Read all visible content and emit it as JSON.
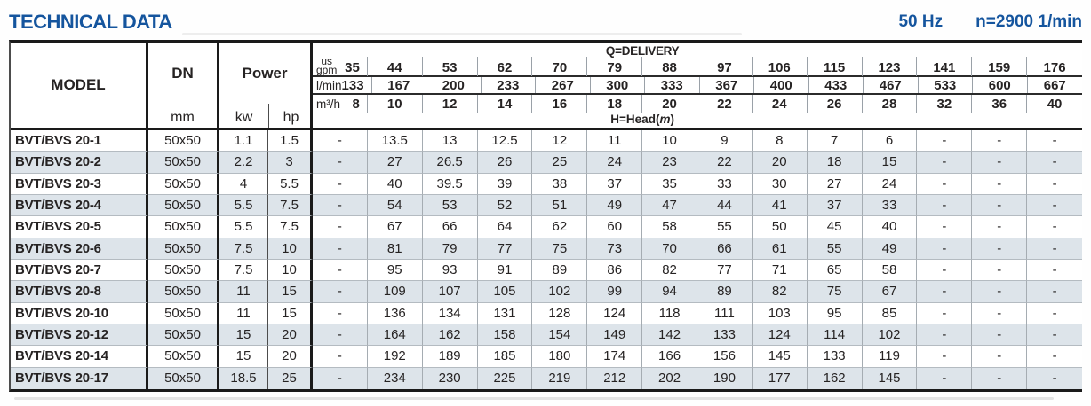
{
  "page": {
    "title": "TECHNICAL DATA",
    "frequency": "50 Hz",
    "speed": "n=2900 1/min"
  },
  "table": {
    "headers": {
      "model": "MODEL",
      "dn": "DN",
      "dn_unit": "mm",
      "power": "Power",
      "kw": "kw",
      "hp": "hp"
    },
    "delivery": {
      "title": "Q=DELIVERY",
      "gpm": {
        "label_top": "us",
        "label_bottom": "gpm",
        "values": [
          35,
          44,
          53,
          62,
          70,
          79,
          88,
          97,
          106,
          115,
          123,
          141,
          159,
          176
        ]
      },
      "lmin": {
        "label": "l/min",
        "values": [
          133,
          167,
          200,
          233,
          267,
          300,
          333,
          367,
          400,
          433,
          467,
          533,
          600,
          667
        ]
      },
      "m3h": {
        "label": "m³/h",
        "values": [
          8,
          10,
          12,
          14,
          16,
          18,
          20,
          22,
          24,
          26,
          28,
          32,
          36,
          40
        ]
      }
    },
    "head_label": {
      "prefix": "H=Head(",
      "m": "m",
      "suffix": ")"
    },
    "rows": [
      {
        "model": "BVT/BVS 20-1",
        "dn": "50x50",
        "kw": "1.1",
        "hp": "1.5",
        "head": [
          "-",
          "13.5",
          "13",
          "12.5",
          "12",
          "11",
          "10",
          "9",
          "8",
          "7",
          "6",
          "-",
          "-",
          "-"
        ]
      },
      {
        "model": "BVT/BVS 20-2",
        "dn": "50x50",
        "kw": "2.2",
        "hp": "3",
        "head": [
          "-",
          "27",
          "26.5",
          "26",
          "25",
          "24",
          "23",
          "22",
          "20",
          "18",
          "15",
          "-",
          "-",
          "-"
        ]
      },
      {
        "model": "BVT/BVS 20-3",
        "dn": "50x50",
        "kw": "4",
        "hp": "5.5",
        "head": [
          "-",
          "40",
          "39.5",
          "39",
          "38",
          "37",
          "35",
          "33",
          "30",
          "27",
          "24",
          "-",
          "-",
          "-"
        ]
      },
      {
        "model": "BVT/BVS 20-4",
        "dn": "50x50",
        "kw": "5.5",
        "hp": "7.5",
        "head": [
          "-",
          "54",
          "53",
          "52",
          "51",
          "49",
          "47",
          "44",
          "41",
          "37",
          "33",
          "-",
          "-",
          "-"
        ]
      },
      {
        "model": "BVT/BVS 20-5",
        "dn": "50x50",
        "kw": "5.5",
        "hp": "7.5",
        "head": [
          "-",
          "67",
          "66",
          "64",
          "62",
          "60",
          "58",
          "55",
          "50",
          "45",
          "40",
          "-",
          "-",
          "-"
        ]
      },
      {
        "model": "BVT/BVS 20-6",
        "dn": "50x50",
        "kw": "7.5",
        "hp": "10",
        "head": [
          "-",
          "81",
          "79",
          "77",
          "75",
          "73",
          "70",
          "66",
          "61",
          "55",
          "49",
          "-",
          "-",
          "-"
        ]
      },
      {
        "model": "BVT/BVS 20-7",
        "dn": "50x50",
        "kw": "7.5",
        "hp": "10",
        "head": [
          "-",
          "95",
          "93",
          "91",
          "89",
          "86",
          "82",
          "77",
          "71",
          "65",
          "58",
          "-",
          "-",
          "-"
        ]
      },
      {
        "model": "BVT/BVS 20-8",
        "dn": "50x50",
        "kw": "11",
        "hp": "15",
        "head": [
          "-",
          "109",
          "107",
          "105",
          "102",
          "99",
          "94",
          "89",
          "82",
          "75",
          "67",
          "-",
          "-",
          "-"
        ]
      },
      {
        "model": "BVT/BVS 20-10",
        "dn": "50x50",
        "kw": "11",
        "hp": "15",
        "head": [
          "-",
          "136",
          "134",
          "131",
          "128",
          "124",
          "118",
          "111",
          "103",
          "95",
          "85",
          "-",
          "-",
          "-"
        ]
      },
      {
        "model": "BVT/BVS 20-12",
        "dn": "50x50",
        "kw": "15",
        "hp": "20",
        "head": [
          "-",
          "164",
          "162",
          "158",
          "154",
          "149",
          "142",
          "133",
          "124",
          "114",
          "102",
          "-",
          "-",
          "-"
        ]
      },
      {
        "model": "BVT/BVS 20-14",
        "dn": "50x50",
        "kw": "15",
        "hp": "20",
        "head": [
          "-",
          "192",
          "189",
          "185",
          "180",
          "174",
          "166",
          "156",
          "145",
          "133",
          "119",
          "-",
          "-",
          "-"
        ]
      },
      {
        "model": "BVT/BVS 20-17",
        "dn": "50x50",
        "kw": "18.5",
        "hp": "25",
        "head": [
          "-",
          "234",
          "230",
          "225",
          "219",
          "212",
          "202",
          "190",
          "177",
          "162",
          "145",
          "-",
          "-",
          "-"
        ]
      }
    ]
  }
}
